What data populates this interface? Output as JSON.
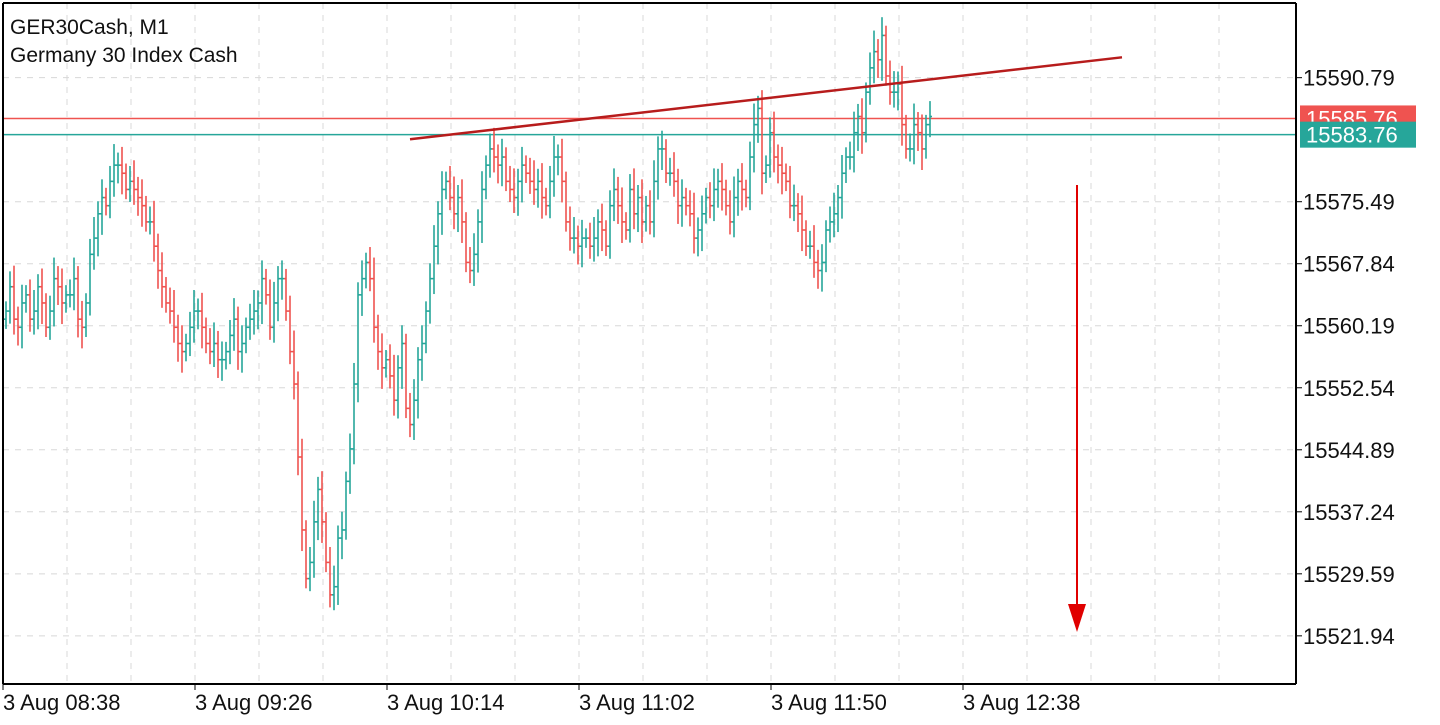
{
  "header": {
    "symbol_title": "GER30Cash, M1",
    "symbol_description": "Germany 30 Index Cash"
  },
  "colors": {
    "bull": "#26a69a",
    "bear": "#ef5350",
    "grid": "#d8d8d8",
    "axis": "#000000",
    "trend": "#b71c1c",
    "arrow": "#e00000"
  },
  "price_labels": {
    "ask": {
      "value": 15585.76,
      "text": "15585.76",
      "color": "#ef5350"
    },
    "bid": {
      "value": 15583.76,
      "text": "15583.76",
      "color": "#26a69a"
    }
  },
  "chart_data": {
    "type": "candlestick-bars",
    "title": "GER30Cash, M1",
    "subtitle": "Germany 30 Index Cash",
    "ylim": [
      15516.0,
      15600.0
    ],
    "x_tick_labels": [
      "3 Aug 08:38",
      "3 Aug 09:26",
      "3 Aug 10:14",
      "3 Aug 11:02",
      "3 Aug 11:50",
      "3 Aug 12:38"
    ],
    "y_tick_labels": [
      "15590.79",
      "15575.49",
      "15567.84",
      "15560.19",
      "15552.54",
      "15544.89",
      "15537.24",
      "15529.59",
      "15521.94"
    ],
    "y_tick_values": [
      15590.79,
      15575.49,
      15567.84,
      15560.19,
      15552.54,
      15544.89,
      15537.24,
      15529.59,
      15521.94
    ],
    "grid": true,
    "series": [
      {
        "values": [
          15562,
          15565,
          15561,
          15560,
          15563,
          15564,
          15561,
          15562,
          15565,
          15563,
          15560,
          15562,
          15566,
          15565,
          15563,
          15564,
          15564,
          15566,
          15561,
          15560,
          15563,
          15569,
          15571,
          15574,
          15576,
          15575,
          15578,
          15580,
          15580,
          15579,
          15577,
          15578,
          15577,
          15576,
          15575,
          15573,
          15573,
          15570,
          15567,
          15565,
          15563,
          15562,
          15560,
          15558,
          15557,
          15558,
          15560,
          15562,
          15562,
          15560,
          15558,
          15557,
          15558,
          15556,
          15556,
          15557,
          15559,
          15561,
          15557,
          15558,
          15560,
          15561,
          15562,
          15563,
          15566,
          15564,
          15560,
          15563,
          15566,
          15566,
          15562,
          15557,
          15553,
          15544,
          15535,
          15529,
          15531,
          15536,
          15540,
          15536,
          15531,
          15527,
          15528,
          15534,
          15535,
          15541,
          15545,
          15553,
          15564,
          15566,
          15568,
          15566,
          15560,
          15557,
          15555,
          15556,
          15554,
          15551,
          15555,
          15558,
          15550,
          15548,
          15551,
          15556,
          15558,
          15562,
          15566,
          15570,
          15574,
          15577,
          15578,
          15576,
          15574,
          15576,
          15573,
          15568,
          15567,
          15569,
          15573,
          15577,
          15580,
          15582,
          15581,
          15580,
          15581,
          15578,
          15577,
          15576,
          15578,
          15580,
          15579,
          15578,
          15577,
          15578,
          15576,
          15575,
          15578,
          15581,
          15581,
          15578,
          15573,
          15571,
          15571,
          15570,
          15571,
          15571,
          15570,
          15571,
          15573,
          15572,
          15570,
          15575,
          15577,
          15575,
          15573,
          15572,
          15577,
          15574,
          15576,
          15573,
          15575,
          15573,
          15578,
          15582,
          15582,
          15579,
          15579,
          15578,
          15575,
          15576,
          15575,
          15574,
          15571,
          15572,
          15574,
          15576,
          15575,
          15577,
          15578,
          15577,
          15575,
          15573,
          15576,
          15578,
          15577,
          15576,
          15581,
          15585,
          15587,
          15579,
          15580,
          15584,
          15581,
          15580,
          15579,
          15578,
          15575,
          15575,
          15574,
          15572,
          15570,
          15570,
          15568,
          15567,
          15568,
          15572,
          15573,
          15574,
          15576,
          15579,
          15581,
          15581,
          15584,
          15586,
          15584,
          15589,
          15592,
          15594,
          15593,
          15596,
          15591,
          15589,
          15589,
          15590,
          15585,
          15582,
          15582,
          15585,
          15584,
          15582,
          15585,
          15586
        ]
      }
    ],
    "trendline": {
      "start": {
        "x": "3 Aug 10:14",
        "y": 15583.2
      },
      "end": {
        "x": "3 Aug 12:38",
        "y": 15593.3
      }
    },
    "annotation": "downward arrow"
  }
}
